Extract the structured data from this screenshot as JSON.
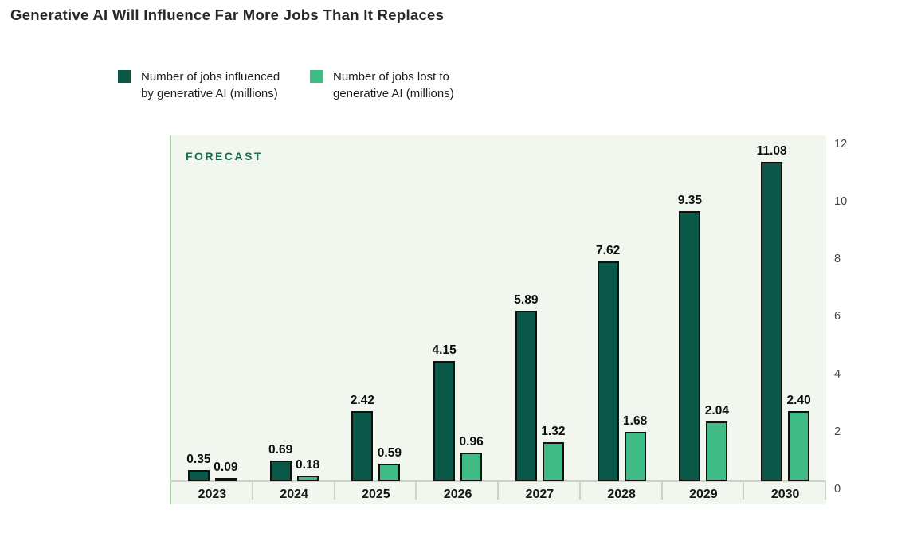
{
  "title": "Generative AI Will Influence Far More Jobs Than It Replaces",
  "forecast_label": "FORECAST",
  "colors": {
    "influenced": "#0a5948",
    "lost": "#3fbc85",
    "bar_outline": "#101010",
    "plot_background": "#f1f7ef",
    "plot_accent_line": "#a7d8a0",
    "axis_line": "#ccd2ca",
    "forecast_text": "#1b6b51",
    "title_text": "#26282b"
  },
  "legend": {
    "items": [
      {
        "label": "Number of jobs influenced by generative AI (millions)",
        "color_key": "influenced"
      },
      {
        "label": "Number of jobs lost to generative AI (millions)",
        "color_key": "lost"
      }
    ]
  },
  "chart_data": {
    "type": "bar",
    "title": "Generative AI Will Influence Far More Jobs Than It Replaces",
    "categories": [
      "2023",
      "2024",
      "2025",
      "2026",
      "2027",
      "2028",
      "2029",
      "2030"
    ],
    "series": [
      {
        "name": "Number of jobs influenced by generative AI (millions)",
        "color_key": "influenced",
        "values": [
          0.35,
          0.69,
          2.42,
          4.15,
          5.89,
          7.62,
          9.35,
          11.08
        ]
      },
      {
        "name": "Number of jobs lost to generative AI (millions)",
        "color_key": "lost",
        "values": [
          0.09,
          0.18,
          0.59,
          0.96,
          1.32,
          1.68,
          2.04,
          2.4
        ]
      }
    ],
    "annotations": [
      "FORECAST"
    ],
    "xlabel": "",
    "ylabel": "",
    "ylim": [
      0,
      12
    ],
    "y_ticks": [
      0,
      2,
      4,
      6,
      8,
      10,
      12
    ],
    "y_axis_side": "right",
    "grid": false,
    "legend_position": "top-left",
    "value_labels": true,
    "value_label_format": "2-decimals"
  }
}
